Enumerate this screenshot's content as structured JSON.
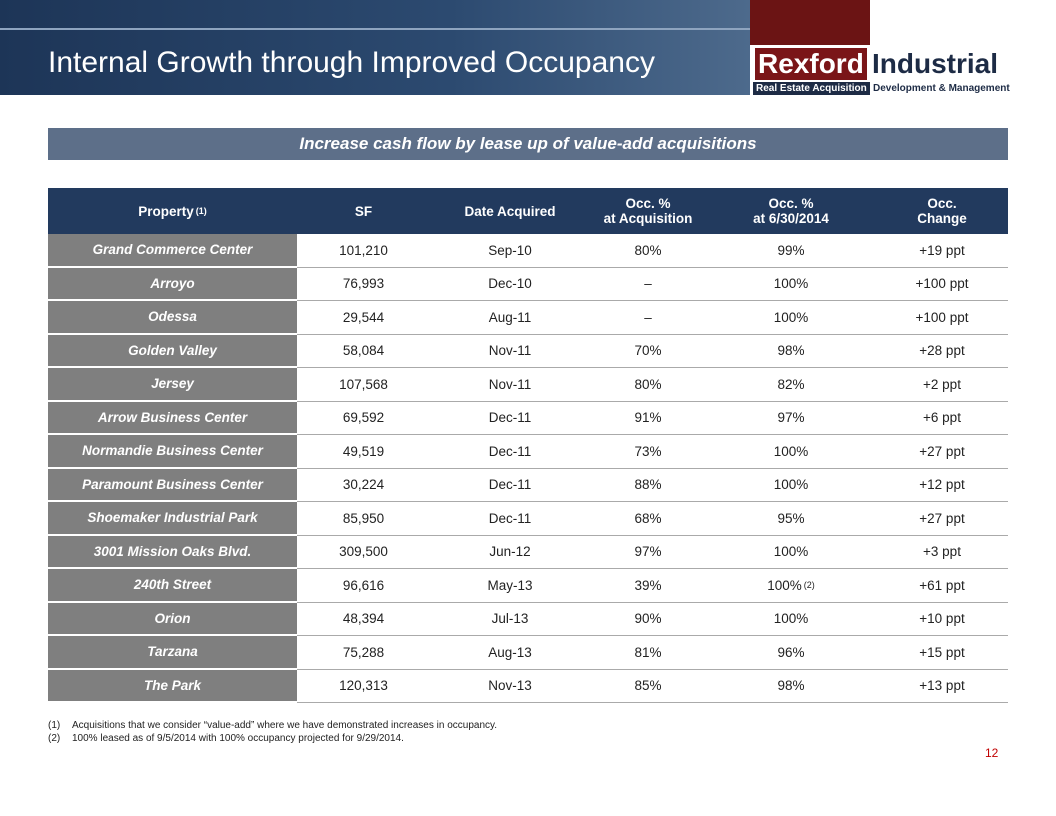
{
  "header": {
    "title": "Internal Growth through Improved Occupancy",
    "logo": {
      "brand": "Rexford",
      "brand2": "Industrial",
      "tag1": "Real Estate Acquisition",
      "tag2": "Development & Management"
    }
  },
  "banner": "Increase cash flow by lease up of value-add acquisitions",
  "table": {
    "columns": [
      {
        "lines": [
          "Property"
        ],
        "note": "(1)"
      },
      {
        "lines": [
          "SF"
        ]
      },
      {
        "lines": [
          "Date Acquired"
        ]
      },
      {
        "lines": [
          "Occ. %",
          "at Acquisition"
        ]
      },
      {
        "lines": [
          "Occ. %",
          "at 6/30/2014"
        ]
      },
      {
        "lines": [
          "Occ.",
          "Change"
        ]
      }
    ],
    "rows": [
      [
        "Grand Commerce Center",
        "101,210",
        "Sep-10",
        "80%",
        "99%",
        "+19 ppt"
      ],
      [
        "Arroyo",
        "76,993",
        "Dec-10",
        "–",
        "100%",
        "+100 ppt"
      ],
      [
        "Odessa",
        "29,544",
        "Aug-11",
        "–",
        "100%",
        "+100 ppt"
      ],
      [
        "Golden Valley",
        "58,084",
        "Nov-11",
        "70%",
        "98%",
        "+28 ppt"
      ],
      [
        "Jersey",
        "107,568",
        "Nov-11",
        "80%",
        "82%",
        "+2 ppt"
      ],
      [
        "Arrow Business Center",
        "69,592",
        "Dec-11",
        "91%",
        "97%",
        "+6 ppt"
      ],
      [
        "Normandie Business Center",
        "49,519",
        "Dec-11",
        "73%",
        "100%",
        "+27 ppt"
      ],
      [
        "Paramount Business Center",
        "30,224",
        "Dec-11",
        "88%",
        "100%",
        "+12 ppt"
      ],
      [
        "Shoemaker Industrial Park",
        "85,950",
        "Dec-11",
        "68%",
        "95%",
        "+27 ppt"
      ],
      [
        "3001 Mission Oaks Blvd.",
        "309,500",
        "Jun-12",
        "97%",
        "100%",
        "+3 ppt"
      ],
      [
        "240th Street",
        "96,616",
        "May-13",
        "39%",
        {
          "text": "100%",
          "note": "(2)"
        },
        "+61 ppt"
      ],
      [
        "Orion",
        "48,394",
        "Jul-13",
        "90%",
        "100%",
        "+10 ppt"
      ],
      [
        "Tarzana",
        "75,288",
        "Aug-13",
        "81%",
        "96%",
        "+15 ppt"
      ],
      [
        "The Park",
        "120,313",
        "Nov-13",
        "85%",
        "98%",
        "+13 ppt"
      ]
    ]
  },
  "footnotes": [
    {
      "marker": "(1)",
      "text": "Acquisitions that we consider “value-add” where we have demonstrated increases in occupancy."
    },
    {
      "marker": "(2)",
      "text": "100% leased as of 9/5/2014 with 100% occupancy projected for 9/29/2014."
    }
  ],
  "page_number": "12"
}
